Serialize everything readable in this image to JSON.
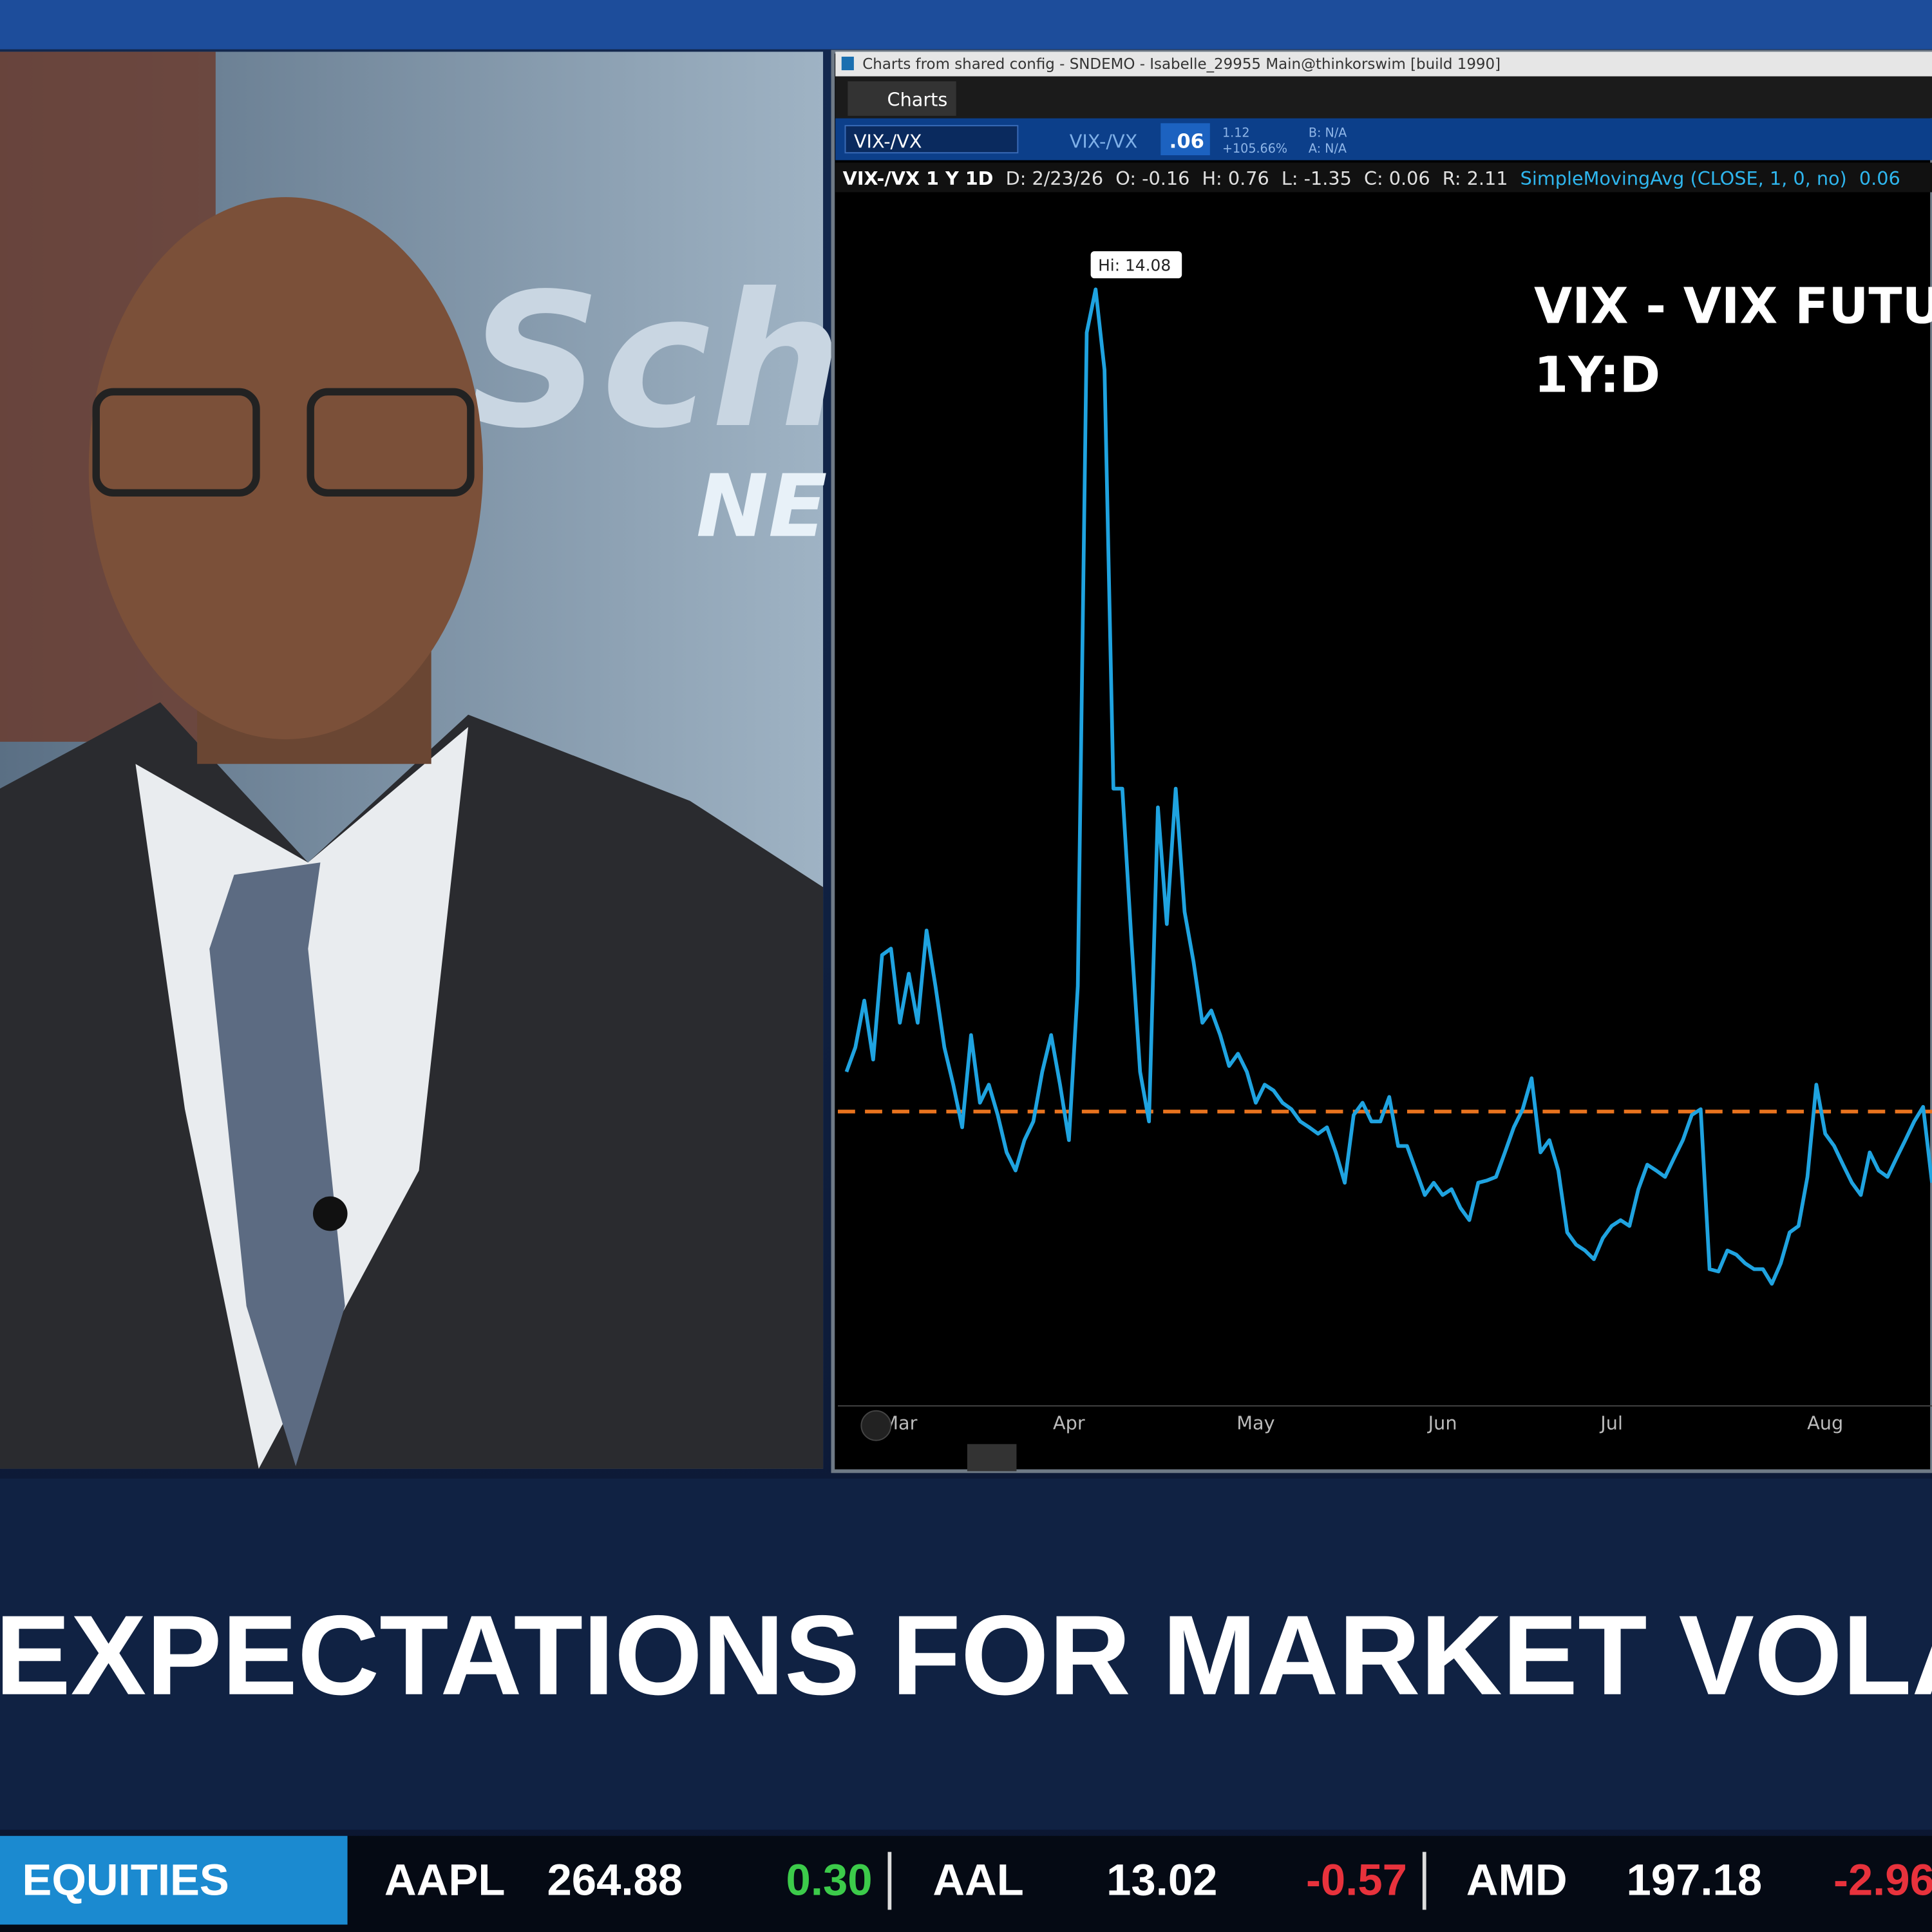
{
  "window": {
    "title": "Charts from shared config - SNDEMO - Isabelle_29955 Main@thinkorswim [build 1990]",
    "tab": "Charts"
  },
  "toolbar": {
    "symbol": "VIX-/VX",
    "symbol_label": "VIX-/VX",
    "last": ".06",
    "change": "1.12",
    "change_pct": "+105.66%",
    "bid": "B: N/A",
    "ask": "A: N/A"
  },
  "info_bar": [
    "VIX-/VX 1 Y 1D",
    "D: 2/23/26",
    "O: -0.16",
    "H: 0.76",
    "L: -1.35",
    "C: 0.06",
    "R: 2.11",
    "SimpleMovingAvg (CLOSE, 1, 0, no)",
    "0.06"
  ],
  "studio": {
    "logo": "Sch",
    "logo_sub": "NE"
  },
  "chart_data": {
    "type": "line",
    "title": "VIX - VIX FUTURI",
    "subtitle": "1Y:D",
    "color": "#1fa3e0",
    "peak_label": "Hi: 14.08",
    "reference_line": {
      "value": 0,
      "color": "#e8731e"
    },
    "ylim": [
      -5.02,
      15.66
    ],
    "categories": [
      null,
      null,
      null,
      null,
      null,
      null,
      "Mar",
      null,
      null,
      null,
      null,
      null,
      null,
      null,
      null,
      null,
      null,
      null,
      null,
      null,
      null,
      null,
      null,
      null,
      null,
      "Apr",
      null,
      null,
      null,
      null,
      null,
      null,
      null,
      null,
      null,
      null,
      null,
      null,
      null,
      null,
      null,
      null,
      null,
      null,
      null,
      null,
      "May",
      null,
      null,
      null,
      null,
      null,
      null,
      null,
      null,
      null,
      null,
      null,
      null,
      null,
      null,
      null,
      null,
      null,
      null,
      null,
      null,
      "Jun",
      null,
      null,
      null,
      null,
      null,
      null,
      null,
      null,
      null,
      null,
      null,
      null,
      null,
      null,
      null,
      null,
      null,
      null,
      "Jul",
      null,
      null,
      null,
      null,
      null,
      null,
      null,
      null,
      null,
      null,
      null,
      null,
      null,
      null,
      null,
      null,
      null,
      null,
      null,
      null,
      null,
      null,
      null,
      "Aug",
      null,
      null,
      null,
      null,
      null,
      null,
      null,
      null,
      null,
      null,
      null,
      null
    ],
    "values": [
      0.68,
      1.1,
      1.9,
      0.89,
      2.68,
      2.79,
      1.52,
      2.36,
      1.52,
      3.1,
      2.15,
      1.1,
      0.46,
      -0.27,
      1.31,
      0.15,
      0.46,
      -0.06,
      -0.7,
      -1.01,
      -0.49,
      -0.17,
      0.68,
      1.31,
      0.46,
      -0.49,
      2.15,
      13.34,
      14.08,
      12.7,
      5.53,
      5.53,
      3.0,
      0.68,
      -0.17,
      5.21,
      3.21,
      5.53,
      3.42,
      2.57,
      1.52,
      1.73,
      1.31,
      0.78,
      0.99,
      0.68,
      0.15,
      0.46,
      0.36,
      0.15,
      0.04,
      -0.17,
      -0.27,
      -0.38,
      -0.27,
      -0.7,
      -1.22,
      -0.06,
      0.15,
      -0.17,
      -0.17,
      0.25,
      -0.59,
      -0.59,
      -1.01,
      -1.43,
      -1.22,
      -1.43,
      -1.33,
      -1.65,
      -1.86,
      -1.22,
      -1.18,
      -1.12,
      -0.7,
      -0.27,
      0.04,
      0.57,
      -0.7,
      -0.49,
      -1.01,
      -2.07,
      -2.28,
      -2.38,
      -2.53,
      -2.17,
      -1.96,
      -1.86,
      -1.96,
      -1.33,
      -0.91,
      -1.01,
      -1.12,
      -0.8,
      -0.49,
      -0.06,
      0.04,
      -2.7,
      -2.74,
      -2.38,
      -2.45,
      -2.6,
      -2.7,
      -2.7,
      -2.95,
      -2.6,
      -2.07,
      -1.96,
      -1.12,
      0.46,
      -0.38,
      -0.59,
      -0.91,
      -1.22,
      -1.43,
      -0.7,
      -1.01,
      -1.12,
      -0.8,
      -0.49,
      -0.17,
      0.08,
      -1.22
    ]
  },
  "headline": "EXPECTATIONS FOR MARKET VOLATILI",
  "ticker": {
    "section": "EQUITIES",
    "items": [
      {
        "symbol": "AAPL",
        "price": "264.88",
        "change": "0.30"
      },
      {
        "symbol": "AAL",
        "price": "13.02",
        "change": "-0.57"
      },
      {
        "symbol": "AMD",
        "price": "197.18",
        "change": "-2.96"
      }
    ]
  }
}
